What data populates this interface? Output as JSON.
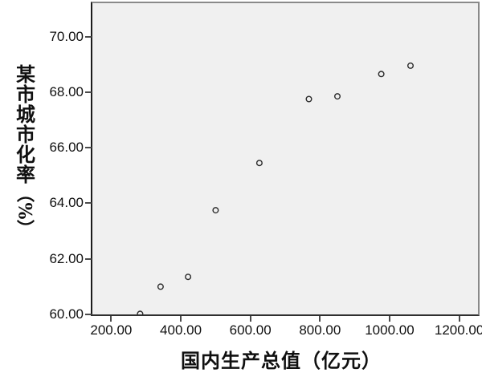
{
  "figure": {
    "background": "#ffffff",
    "plot_background": "#f0f0f0",
    "panel_border_color": "#8a8a8a",
    "axis_line_color": "#1c1c1c",
    "tick_color": "#4a4a4a",
    "text_color": "#101010",
    "point_stroke_color": "#2a2a2a"
  },
  "chart_data": {
    "type": "scatter",
    "title": "",
    "xlabel": "国内生产总值（亿元）",
    "ylabel": "某市城市化率（%）",
    "ylabel_vertical_chars": [
      "某",
      "市",
      "城",
      "市",
      "化",
      "率"
    ],
    "ylabel_unit": "（%）",
    "xlim": [
      146,
      1254
    ],
    "ylim": [
      60,
      71.2
    ],
    "x_ticks": [
      200,
      400,
      600,
      800,
      1000,
      1200
    ],
    "x_tick_labels": [
      "200.00",
      "400.00",
      "600.00",
      "800.00",
      "1000.00",
      "1200.00"
    ],
    "y_ticks": [
      60,
      62,
      64,
      66,
      68,
      70
    ],
    "y_tick_labels": [
      "60.00",
      "62.00",
      "64.00",
      "66.00",
      "68.00",
      "70.00"
    ],
    "points": [
      {
        "x": 283,
        "y": 60.02
      },
      {
        "x": 342,
        "y": 61.0
      },
      {
        "x": 421,
        "y": 61.35
      },
      {
        "x": 500,
        "y": 63.75
      },
      {
        "x": 626,
        "y": 65.45
      },
      {
        "x": 768,
        "y": 67.75
      },
      {
        "x": 850,
        "y": 67.85
      },
      {
        "x": 976,
        "y": 68.65
      },
      {
        "x": 1060,
        "y": 68.95
      }
    ],
    "marker": "open-circle",
    "marker_radius_px": 3.3,
    "grid": false,
    "legend": "none"
  }
}
